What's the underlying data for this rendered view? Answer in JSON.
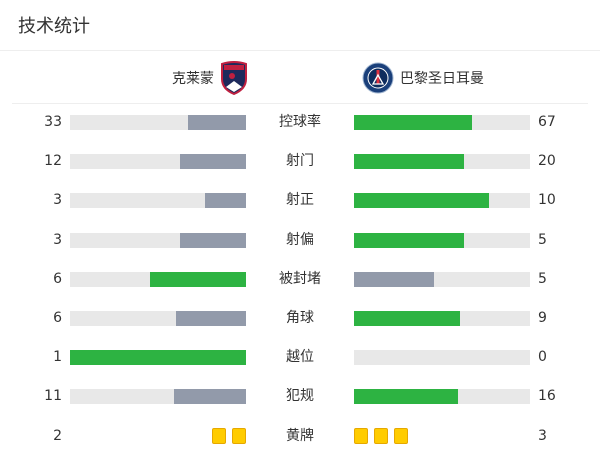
{
  "title": "技术统计",
  "home": {
    "name": "克莱蒙",
    "logo": "clermont-crest"
  },
  "away": {
    "name": "巴黎圣日耳曼",
    "logo": "psg-crest"
  },
  "colors": {
    "lead": "#2db342",
    "trail": "#929aaa",
    "track": "#e8e8e8",
    "card": "#ffcc00"
  },
  "stats": [
    {
      "label": "控球率",
      "home": 33,
      "away": 67
    },
    {
      "label": "射门",
      "home": 12,
      "away": 20
    },
    {
      "label": "射正",
      "home": 3,
      "away": 10
    },
    {
      "label": "射偏",
      "home": 3,
      "away": 5
    },
    {
      "label": "被封堵",
      "home": 6,
      "away": 5
    },
    {
      "label": "角球",
      "home": 6,
      "away": 9
    },
    {
      "label": "越位",
      "home": 1,
      "away": 0
    },
    {
      "label": "犯规",
      "home": 11,
      "away": 16
    }
  ],
  "yellow_cards": {
    "label": "黄牌",
    "home": 2,
    "away": 3
  }
}
